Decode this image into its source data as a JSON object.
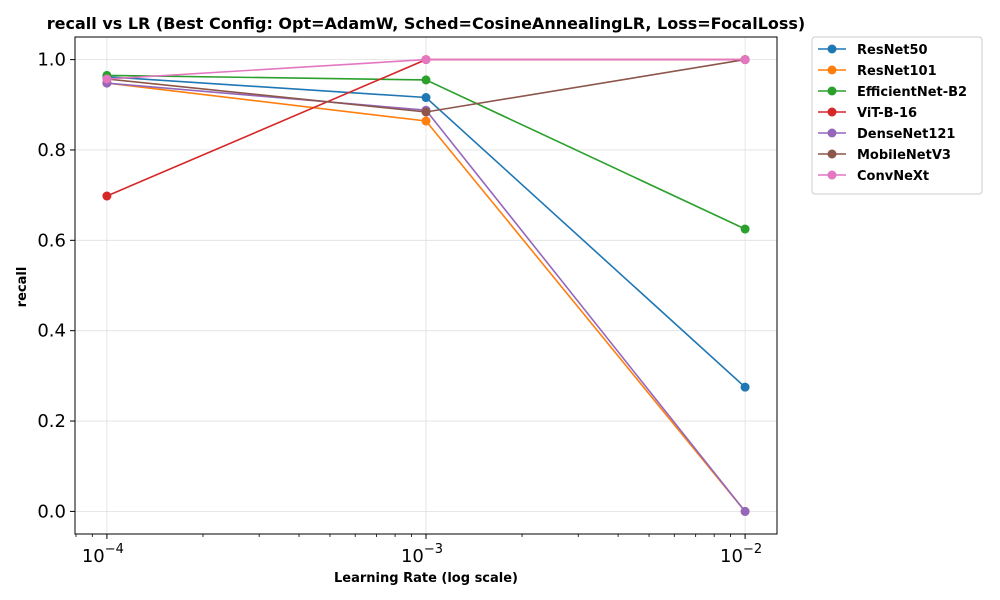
{
  "chart_data": {
    "type": "line",
    "title": "recall vs LR (Best Config: Opt=AdamW, Sched=CosineAnnealingLR, Loss=FocalLoss)",
    "xlabel": "Learning Rate (log scale)",
    "ylabel": "recall",
    "x_scale": "log",
    "x": [
      0.0001,
      0.001,
      0.01
    ],
    "x_tick_labels": [
      {
        "base": "10",
        "exp": "−4"
      },
      {
        "base": "10",
        "exp": "−3"
      },
      {
        "base": "10",
        "exp": "−2"
      }
    ],
    "ylim": [
      -0.05,
      1.05
    ],
    "y_ticks": [
      "0.0",
      "0.2",
      "0.4",
      "0.6",
      "0.8",
      "1.0"
    ],
    "grid": true,
    "legend_position": "outside-right",
    "series": [
      {
        "name": "ResNet50",
        "color": "#1f77b4",
        "values": [
          0.962,
          0.916,
          0.275
        ]
      },
      {
        "name": "ResNet101",
        "color": "#ff7f0e",
        "values": [
          0.948,
          0.864,
          0.0
        ]
      },
      {
        "name": "EfficientNet-B2",
        "color": "#2ca02c",
        "values": [
          0.965,
          0.955,
          0.625
        ]
      },
      {
        "name": "ViT-B-16",
        "color": "#d62728",
        "values": [
          0.698,
          1.0,
          1.0
        ]
      },
      {
        "name": "DenseNet121",
        "color": "#9467bd",
        "values": [
          0.948,
          0.888,
          0.0
        ]
      },
      {
        "name": "MobileNetV3",
        "color": "#8c564b",
        "values": [
          0.957,
          0.884,
          1.0
        ]
      },
      {
        "name": "ConvNeXt",
        "color": "#e377c2",
        "values": [
          0.957,
          1.0,
          1.0
        ]
      }
    ]
  }
}
